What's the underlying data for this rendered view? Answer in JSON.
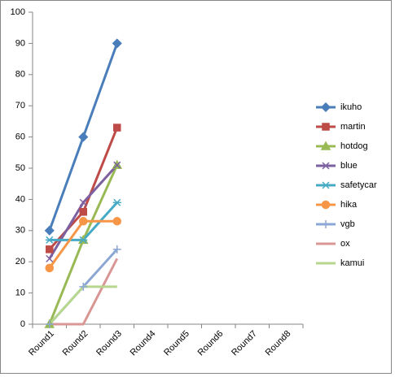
{
  "chart_data": {
    "type": "line",
    "categories": [
      "Round1",
      "Round2",
      "Round3",
      "Round4",
      "Round5",
      "Round6",
      "Round7",
      "Round8"
    ],
    "ylim": [
      0,
      100
    ],
    "yticks": [
      0,
      10,
      20,
      30,
      40,
      50,
      60,
      70,
      80,
      90,
      100
    ],
    "grid": false,
    "legend": "right",
    "series": [
      {
        "name": "ikuho",
        "color": "#4a7ebb",
        "marker": "diamond",
        "values": [
          30,
          60,
          90,
          null,
          null,
          null,
          null,
          null
        ]
      },
      {
        "name": "martin",
        "color": "#be4b48",
        "marker": "square",
        "values": [
          24,
          36,
          63,
          null,
          null,
          null,
          null,
          null
        ]
      },
      {
        "name": "hotdog",
        "color": "#98b954",
        "marker": "triangle",
        "values": [
          0,
          27,
          51,
          null,
          null,
          null,
          null,
          null
        ]
      },
      {
        "name": "blue",
        "color": "#7d60a0",
        "marker": "x",
        "values": [
          21,
          39,
          51,
          null,
          null,
          null,
          null,
          null
        ]
      },
      {
        "name": "safetycar",
        "color": "#46aac5",
        "marker": "star",
        "values": [
          27,
          27,
          39,
          null,
          null,
          null,
          null,
          null
        ]
      },
      {
        "name": "hika",
        "color": "#f79646",
        "marker": "circle",
        "values": [
          18,
          33,
          33,
          null,
          null,
          null,
          null,
          null
        ]
      },
      {
        "name": "vgb",
        "color": "#8ca7d4",
        "marker": "plus",
        "values": [
          0,
          12,
          24,
          null,
          null,
          null,
          null,
          null
        ]
      },
      {
        "name": "ox",
        "color": "#d99694",
        "marker": "none",
        "values": [
          0,
          0,
          21,
          null,
          null,
          null,
          null,
          null
        ]
      },
      {
        "name": "kamui",
        "color": "#b7d68e",
        "marker": "none",
        "values": [
          0,
          12,
          12,
          null,
          null,
          null,
          null,
          null
        ]
      }
    ]
  }
}
